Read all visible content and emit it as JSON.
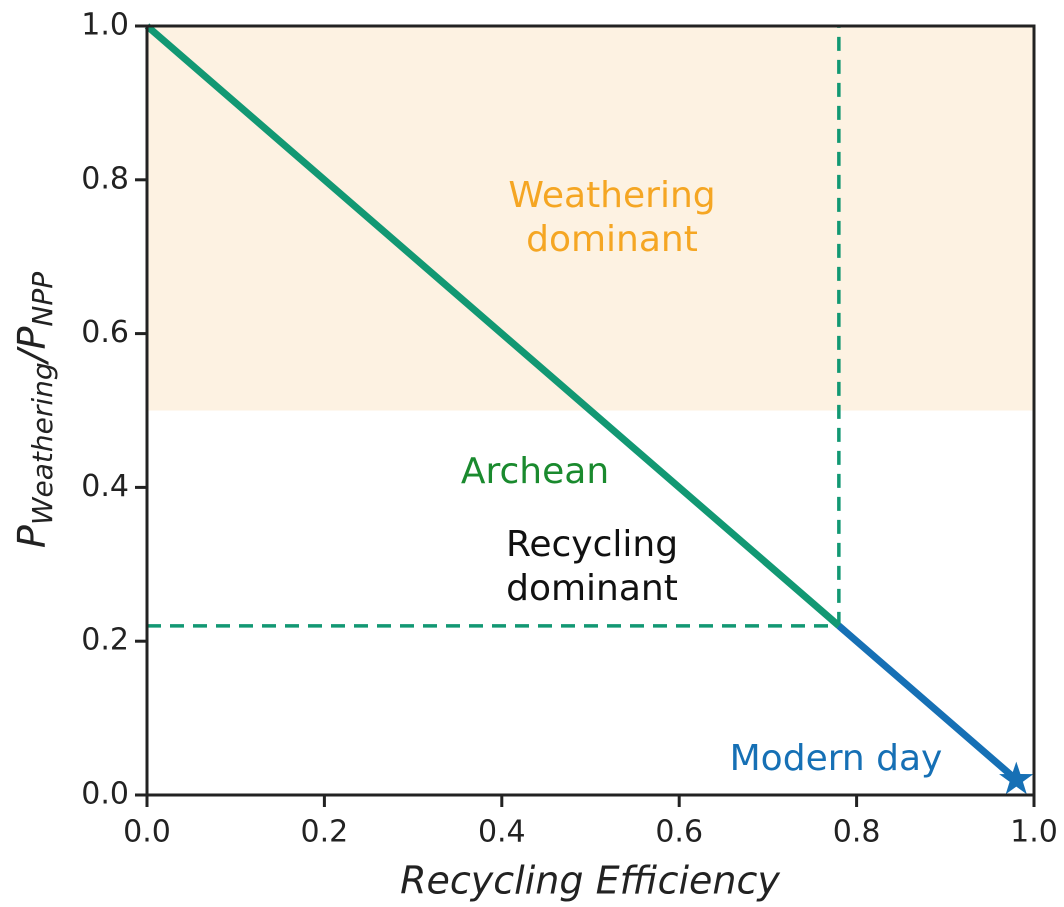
{
  "chart_data": {
    "type": "line",
    "xlabel": "Recycling Efficiency",
    "ylabel": [
      "P",
      "Weathering",
      "/P",
      "NPP"
    ],
    "xlim": [
      0,
      1.0
    ],
    "ylim": [
      0,
      1.0
    ],
    "xticks": [
      {
        "value": 0,
        "label": "0.0"
      },
      0.2,
      0.4,
      0.6,
      0.8,
      {
        "value": 1.0,
        "label": "1.0"
      }
    ],
    "yticks": [
      {
        "value": 0,
        "label": "0.0"
      },
      0.2,
      0.4,
      0.6,
      0.8,
      {
        "value": 1.0,
        "label": "1.0"
      }
    ],
    "shaded_region": {
      "ylim": [
        0.5,
        1.0
      ],
      "color": "#fdf2e2"
    },
    "series": [
      {
        "color": "#129873",
        "x": [
          0,
          0.78
        ],
        "values": [
          1.0,
          0.22
        ]
      },
      {
        "color": "#1670b5",
        "x": [
          0.78,
          0.98
        ],
        "values": [
          0.22,
          0.02
        ]
      }
    ],
    "reference_lines": [
      {
        "color": "#129873",
        "x": [
          0,
          0.78
        ],
        "values": [
          0.22,
          0.22
        ]
      },
      {
        "color": "#129873",
        "x": [
          0.78,
          0.78
        ],
        "values": [
          0.22,
          1.0
        ]
      }
    ],
    "marker": {
      "x": 0.98,
      "y": 0.02,
      "color": "#1670b5"
    },
    "annotations": [
      {
        "lines": [
          "Weathering",
          "dominant"
        ],
        "color": "#f5a623"
      },
      {
        "lines": [
          "Archean"
        ],
        "color": "#1a8a2e"
      },
      {
        "lines": [
          "Recycling",
          "dominant"
        ],
        "color": "#111111"
      },
      {
        "lines": [
          "Modern day"
        ],
        "color": "#1670b5"
      }
    ]
  }
}
